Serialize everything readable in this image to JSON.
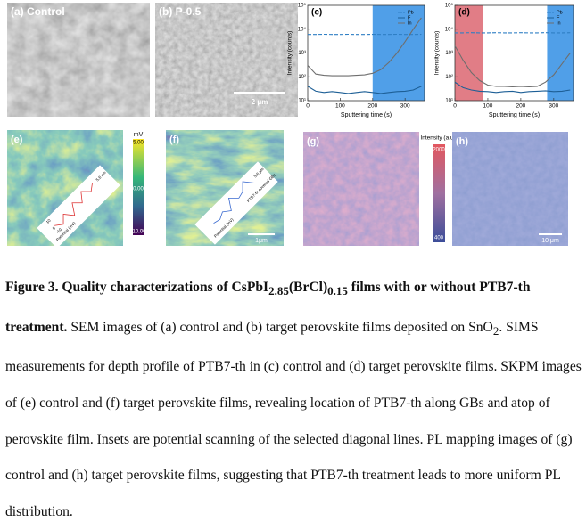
{
  "panels": {
    "a": {
      "label": "(a) Control"
    },
    "b": {
      "label": "(b) P-0.5",
      "scale": "2 μm"
    },
    "e": {
      "label": "(e)",
      "unit": "mV",
      "colorbar": [
        "5.00",
        "0.00",
        "-10.00"
      ],
      "inset_axis": "Potential (mV)",
      "inset_ticks": [
        "10",
        "0",
        "-10"
      ],
      "inset_length": "5.6 μm"
    },
    "f": {
      "label": "(f)",
      "scale": "1μm",
      "inset_axis": "Potential (mV)",
      "inset_length": "5.6 μm",
      "inset_note": "PTB7-th covered GBs"
    },
    "g": {
      "label": "(g)",
      "colorbar_title": "Intensity (a.u.)",
      "colorbar": [
        "2000",
        "400"
      ]
    },
    "h": {
      "label": "(h)",
      "scale": "10 μm"
    }
  },
  "chart_data": [
    {
      "type": "line",
      "panel": "(c)",
      "x_label": "Sputtering time (s)",
      "y_label": "Intensity (counts)",
      "log_y": true,
      "x": [
        0,
        25,
        50,
        75,
        100,
        125,
        150,
        175,
        200,
        225,
        250,
        275,
        300,
        325,
        350
      ],
      "xlim": [
        0,
        360
      ],
      "xticks": [
        0,
        100,
        200,
        300
      ],
      "ylim": [
        10,
        100000
      ],
      "yticks": [
        {
          "value": 10,
          "label": "10¹"
        },
        {
          "value": 100,
          "label": "10²"
        },
        {
          "value": 1000,
          "label": "10³"
        },
        {
          "value": 10000,
          "label": "10⁴"
        },
        {
          "value": 100000,
          "label": "10⁵"
        }
      ],
      "shaded": [
        {
          "xrange": [
            200,
            360
          ],
          "color": "#3d95e6"
        }
      ],
      "series": [
        {
          "name": "Pb",
          "color": "#2f7fc4",
          "dashed": true,
          "values": [
            6000,
            6000,
            6100,
            6000,
            6000,
            6100,
            6000,
            6000,
            6100,
            6000,
            6000,
            6100,
            6000,
            6000,
            6100
          ]
        },
        {
          "name": "F",
          "color": "#1d5f96",
          "dashed": false,
          "values": [
            40,
            25,
            22,
            24,
            22,
            20,
            22,
            24,
            22,
            20,
            22,
            24,
            25,
            28,
            40
          ]
        },
        {
          "name": "In",
          "color": "#6e6e6e",
          "dashed": false,
          "values": [
            300,
            130,
            115,
            110,
            110,
            110,
            115,
            120,
            140,
            200,
            400,
            1000,
            3000,
            10000,
            30000
          ]
        }
      ]
    },
    {
      "type": "line",
      "panel": "(d)",
      "x_label": "Sputtering time (s)",
      "y_label": "Intensity (counts)",
      "log_y": true,
      "x": [
        0,
        25,
        50,
        75,
        100,
        125,
        150,
        175,
        200,
        225,
        250,
        275,
        300,
        325,
        350
      ],
      "xlim": [
        0,
        360
      ],
      "xticks": [
        0,
        100,
        200,
        300
      ],
      "ylim": [
        10,
        100000
      ],
      "yticks": [
        {
          "value": 10,
          "label": "10¹"
        },
        {
          "value": 100,
          "label": "10²"
        },
        {
          "value": 1000,
          "label": "10³"
        },
        {
          "value": 10000,
          "label": "10⁴"
        },
        {
          "value": 100000,
          "label": "10⁵"
        }
      ],
      "shaded": [
        {
          "xrange": [
            0,
            85
          ],
          "color": "#de6f79"
        },
        {
          "xrange": [
            280,
            360
          ],
          "color": "#3d95e6"
        }
      ],
      "series": [
        {
          "name": "Pb",
          "color": "#2f7fc4",
          "dashed": true,
          "values": [
            7000,
            7000,
            7100,
            7000,
            7000,
            7100,
            7000,
            7000,
            7100,
            7000,
            7000,
            7100,
            7000,
            7000,
            7100
          ]
        },
        {
          "name": "F",
          "color": "#1d5f96",
          "dashed": false,
          "values": [
            60,
            35,
            28,
            25,
            24,
            22,
            24,
            25,
            22,
            24,
            25,
            26,
            24,
            25,
            28
          ]
        },
        {
          "name": "In",
          "color": "#6e6e6e",
          "dashed": false,
          "values": [
            2000,
            500,
            150,
            70,
            45,
            40,
            40,
            38,
            40,
            38,
            40,
            60,
            120,
            350,
            1000
          ]
        }
      ]
    }
  ],
  "caption": {
    "title": [
      "Figure 3. Quality characterizations of CsPbI",
      "2.85",
      "(BrCl)",
      "0.15",
      " films with or without PTB7-th treatment."
    ],
    "body": [
      "SEM images of (a) control and (b) target perovskite films deposited on SnO",
      "2",
      ". SIMS measurements for depth profile of PTB7-th in (c) control and (d) target perovskite films. SKPM images of (e) control and (f) target perovskite films, revealing location of PTB7-th along GBs and atop of perovskite film. Insets are potential scanning of the selected diagonal lines. PL mapping images of (g) control and (h) target perovskite films, suggesting that PTB7-th treatment leads to more uniform PL distribution."
    ]
  }
}
